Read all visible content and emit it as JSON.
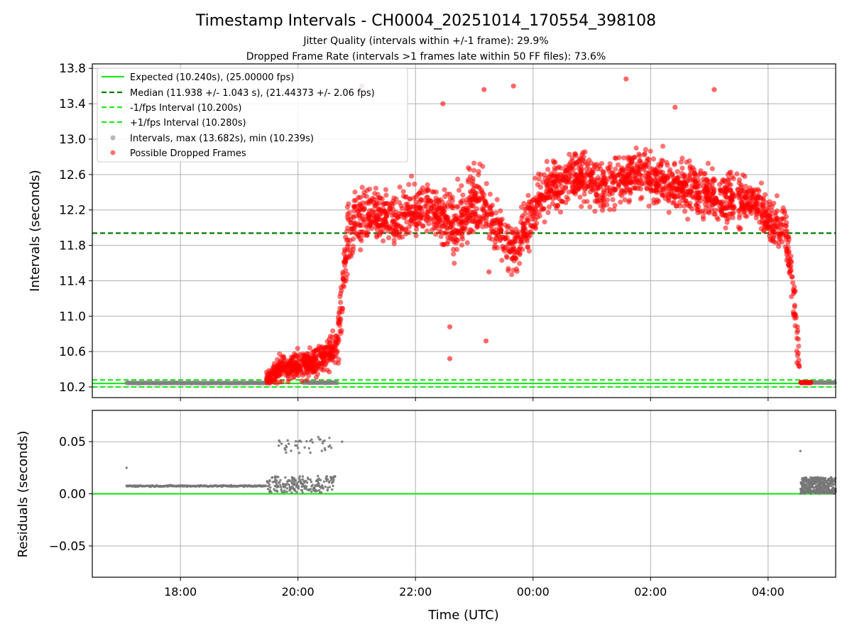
{
  "figure": {
    "title": "Timestamp Intervals - CH0004_20251014_170554_398108",
    "subtitle_1": "Jitter Quality (intervals within +/-1 frame): 29.9%",
    "subtitle_2": "Dropped Frame Rate (intervals >1 frames late within 50 FF files): 73.6%",
    "xlabel": "Time (UTC)"
  },
  "colors": {
    "expected": "#22e622",
    "median": "#007f00",
    "fps_band": "#22e622",
    "intervals": "#808080",
    "dropped": "#ff0000",
    "grid": "#b0b0b0",
    "residuals": "#777777"
  },
  "chart_data": [
    {
      "type": "scatter",
      "name": "intervals",
      "ylabel": "Intervals (seconds)",
      "xlim_hours": [
        16.5,
        29.15
      ],
      "ylim": [
        10.08,
        13.85
      ],
      "yticks": [
        10.2,
        10.6,
        11.0,
        11.4,
        11.8,
        12.2,
        12.6,
        13.0,
        13.4,
        13.8
      ],
      "ytick_labels": [
        "10.2",
        "10.6",
        "11.0",
        "11.4",
        "11.8",
        "12.2",
        "12.6",
        "13.0",
        "13.4",
        "13.8"
      ],
      "grid": true,
      "legend_position": "top-left",
      "reference_lines": [
        {
          "key": "expected",
          "label": "Expected (10.240s), (25.00000 fps)",
          "y": 10.24,
          "style": "solid"
        },
        {
          "key": "median",
          "label": "Median (11.938 +/- 1.043 s), (21.44373 +/- 2.06 fps)",
          "y": 11.938,
          "style": "dashed"
        },
        {
          "key": "minus",
          "label": "-1/fps Interval (10.200s)",
          "y": 10.2,
          "style": "dashed"
        },
        {
          "key": "plus",
          "label": "+1/fps Interval (10.280s)",
          "y": 10.28,
          "style": "dashed"
        }
      ],
      "series": [
        {
          "key": "intervals",
          "label": "Intervals, max (13.682s), min (10.239s)",
          "marker": "circle"
        },
        {
          "key": "dropped",
          "label": "Possible Dropped Frames",
          "marker": "circle"
        }
      ],
      "normal_segments": [
        {
          "x_start": "17:05",
          "x_end": "19:28",
          "y": 10.245
        },
        {
          "x_start": "20:05",
          "x_end": "20:40",
          "y": 10.25
        },
        {
          "x_start": "04:33",
          "x_end": "05:10",
          "y": 10.25
        }
      ],
      "dropped_trend": [
        {
          "x": "19:28",
          "y": 10.3,
          "spread": 0.08
        },
        {
          "x": "19:40",
          "y": 10.4,
          "spread": 0.15
        },
        {
          "x": "20:10",
          "y": 10.45,
          "spread": 0.15
        },
        {
          "x": "20:30",
          "y": 10.55,
          "spread": 0.18
        },
        {
          "x": "20:40",
          "y": 10.65,
          "spread": 0.2
        },
        {
          "x": "20:45",
          "y": 11.2,
          "spread": 0.45
        },
        {
          "x": "20:52",
          "y": 12.0,
          "spread": 0.35
        },
        {
          "x": "21:10",
          "y": 12.15,
          "spread": 0.32
        },
        {
          "x": "21:40",
          "y": 12.1,
          "spread": 0.3
        },
        {
          "x": "22:10",
          "y": 12.25,
          "spread": 0.3
        },
        {
          "x": "22:40",
          "y": 12.0,
          "spread": 0.35
        },
        {
          "x": "23:00",
          "y": 12.35,
          "spread": 0.4
        },
        {
          "x": "23:20",
          "y": 12.05,
          "spread": 0.3
        },
        {
          "x": "23:40",
          "y": 11.75,
          "spread": 0.3
        },
        {
          "x": "23:58",
          "y": 12.1,
          "spread": 0.3
        },
        {
          "x": "00:15",
          "y": 12.45,
          "spread": 0.3
        },
        {
          "x": "00:45",
          "y": 12.6,
          "spread": 0.28
        },
        {
          "x": "01:15",
          "y": 12.45,
          "spread": 0.3
        },
        {
          "x": "01:45",
          "y": 12.65,
          "spread": 0.28
        },
        {
          "x": "02:10",
          "y": 12.5,
          "spread": 0.3
        },
        {
          "x": "02:40",
          "y": 12.45,
          "spread": 0.3
        },
        {
          "x": "03:10",
          "y": 12.35,
          "spread": 0.3
        },
        {
          "x": "03:40",
          "y": 12.3,
          "spread": 0.3
        },
        {
          "x": "04:05",
          "y": 12.05,
          "spread": 0.3
        },
        {
          "x": "04:18",
          "y": 11.95,
          "spread": 0.3
        },
        {
          "x": "04:25",
          "y": 11.4,
          "spread": 0.3
        },
        {
          "x": "04:30",
          "y": 10.7,
          "spread": 0.3
        },
        {
          "x": "04:33",
          "y": 10.26,
          "spread": 0.02
        }
      ],
      "dropped_outliers": [
        {
          "x": "21:05",
          "y": 13.6
        },
        {
          "x": "23:10",
          "y": 13.56
        },
        {
          "x": "23:40",
          "y": 13.6
        },
        {
          "x": "01:35",
          "y": 13.68
        },
        {
          "x": "03:05",
          "y": 13.56
        },
        {
          "x": "22:28",
          "y": 13.4
        },
        {
          "x": "02:25",
          "y": 13.36
        },
        {
          "x": "22:35",
          "y": 10.52
        },
        {
          "x": "23:12",
          "y": 10.72
        },
        {
          "x": "23:15",
          "y": 11.5
        },
        {
          "x": "22:35",
          "y": 10.88
        }
      ]
    },
    {
      "type": "scatter",
      "name": "residuals",
      "ylabel": "Residuals (seconds)",
      "xlim_hours": [
        16.5,
        29.15
      ],
      "ylim": [
        -0.08,
        0.08
      ],
      "yticks": [
        -0.05,
        0.0,
        0.05
      ],
      "ytick_labels": [
        "−0.05",
        "0.00",
        "0.05"
      ],
      "xticks": [
        "18:00",
        "20:00",
        "22:00",
        "00:00",
        "02:00",
        "04:00"
      ],
      "grid": true,
      "zero_line": 0.0,
      "clusters": [
        {
          "x_start": "17:05",
          "x_end": "19:28",
          "y": 0.0075,
          "spread": 0.0012,
          "kind": "band"
        },
        {
          "x_start": "19:28",
          "x_end": "20:38",
          "y": 0.009,
          "spread": 0.008,
          "kind": "scatter"
        },
        {
          "x_start": "19:40",
          "x_end": "20:35",
          "y": 0.047,
          "spread": 0.008,
          "kind": "sparse"
        },
        {
          "x_start": "04:33",
          "x_end": "05:10",
          "y": 0.008,
          "spread": 0.008,
          "kind": "dense"
        }
      ],
      "outliers": [
        {
          "x": "17:05",
          "y": 0.025
        },
        {
          "x": "04:33",
          "y": 0.041
        },
        {
          "x": "20:45",
          "y": 0.05
        }
      ]
    }
  ]
}
